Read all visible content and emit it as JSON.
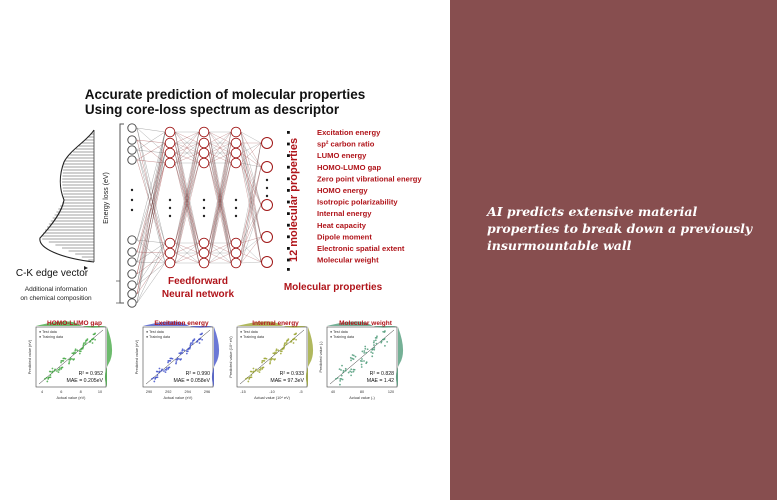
{
  "figure": {
    "title_line1": "Accurate prediction of molecular properties",
    "title_line2": "Using core-loss spectrum as descriptor",
    "energy_axis_label": "Energy loss (eV)",
    "ck_label": "C-K edge vector",
    "additional_info_line1": "Additional information",
    "additional_info_line2": "on chemical composition",
    "network_label_line1": "Feedforward",
    "network_label_line2": "Neural network",
    "outputs_axis_label": "12 molecular properties",
    "properties_heading": "Molecular properties",
    "properties": [
      "Excitation energy",
      "sp² carbon ratio",
      "LUMO energy",
      "HOMO-LUMO gap",
      "Zero point vibrational energy",
      "HOMO energy",
      "Isotropic polarizability",
      "Internal energy",
      "Heat capacity",
      "Dipole moment",
      "Electronic spatial extent",
      "Molecular weight"
    ],
    "plots": [
      {
        "title": "HOMO-LUMO gap",
        "legend_test": "Test data",
        "legend_train": "Training data",
        "r2": "R² = 0.952",
        "mae": "MAE = 0.205eV",
        "xlabel": "Actual value (eV)",
        "ylabel": "Predicted value (eV)",
        "ticks": [
          "4",
          "6",
          "8",
          "10"
        ],
        "color": "#2f9e2f"
      },
      {
        "title": "Excitation energy",
        "legend_test": "Test data",
        "legend_train": "Training data",
        "r2": "R² = 0.990",
        "mae": "MAE = 0.058eV",
        "xlabel": "Actual value (eV)",
        "ylabel": "Predicted value (eV)",
        "ticks": [
          "290",
          "292",
          "294",
          "296"
        ],
        "color": "#2c3fc4"
      },
      {
        "title": "Internal energy",
        "legend_test": "Test data",
        "legend_train": "Training data",
        "r2": "R² = 0.933",
        "mae": "MAE = 97.3eV",
        "xlabel": "Actual value (10⁴ eV)",
        "ylabel": "Predicted value (10⁴ eV)",
        "ticks": [
          "-15",
          "-10",
          "-5"
        ],
        "color": "#8f9a1a"
      },
      {
        "title": "Molecular weight",
        "legend_test": "Test data",
        "legend_train": "Training data",
        "r2": "R² = 0.828",
        "mae": "MAE = 1.42",
        "xlabel": "Actual value (-)",
        "ylabel": "Predicted value (-)",
        "ticks": [
          "40",
          "80",
          "120"
        ],
        "color": "#3a8f6a"
      }
    ]
  },
  "caption": "AI predicts extensive material properties to break down a previously insurmountable wall",
  "colors": {
    "panel_background": "#874e4f",
    "title_text": "#111111",
    "accent_red": "#b0141a",
    "caption_text": "#ffffff"
  }
}
